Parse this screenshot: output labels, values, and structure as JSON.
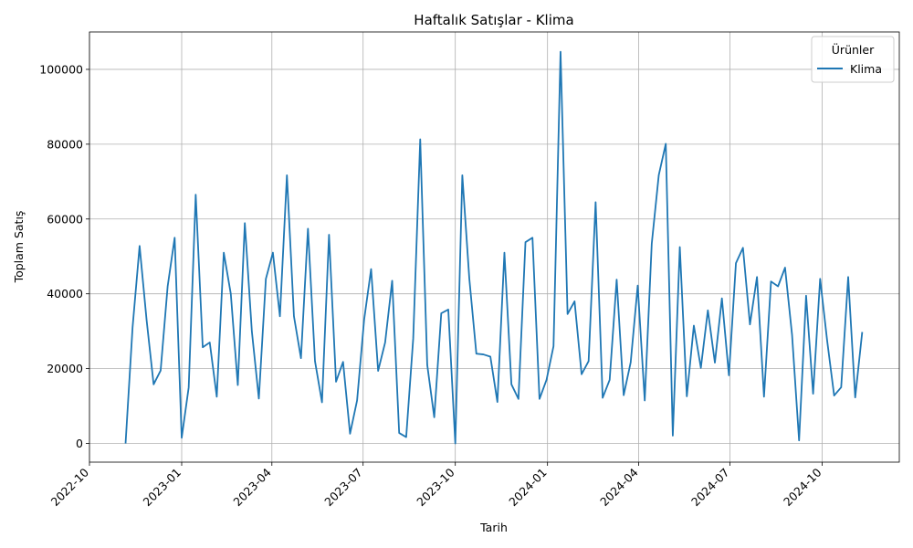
{
  "chart_data": {
    "type": "line",
    "title": "Haftalık Satışlar - Klima",
    "xlabel": "Tarih",
    "ylabel": "Toplam Satış",
    "legend": {
      "title": "Ürünler",
      "placement": "top-right"
    },
    "grid": true,
    "xlim": [
      "2022-10-01",
      "2024-12-17"
    ],
    "ylim": [
      -5000,
      110000
    ],
    "x_ticks": [
      "2022-10",
      "2023-01",
      "2023-04",
      "2023-07",
      "2023-10",
      "2024-01",
      "2024-04",
      "2024-07",
      "2024-10"
    ],
    "y_ticks": [
      0,
      20000,
      40000,
      60000,
      80000,
      100000
    ],
    "series": [
      {
        "name": "Klima",
        "color": "#1f77b4",
        "x": [
          "2022-11-06",
          "2022-11-13",
          "2022-11-20",
          "2022-11-27",
          "2022-12-04",
          "2022-12-11",
          "2022-12-18",
          "2022-12-25",
          "2023-01-01",
          "2023-01-08",
          "2023-01-15",
          "2023-01-22",
          "2023-01-29",
          "2023-02-05",
          "2023-02-12",
          "2023-02-19",
          "2023-02-26",
          "2023-03-05",
          "2023-03-12",
          "2023-03-19",
          "2023-03-26",
          "2023-04-02",
          "2023-04-09",
          "2023-04-16",
          "2023-04-23",
          "2023-04-30",
          "2023-05-07",
          "2023-05-14",
          "2023-05-21",
          "2023-05-28",
          "2023-06-04",
          "2023-06-11",
          "2023-06-18",
          "2023-06-25",
          "2023-07-02",
          "2023-07-09",
          "2023-07-16",
          "2023-07-23",
          "2023-07-30",
          "2023-08-06",
          "2023-08-13",
          "2023-08-20",
          "2023-08-27",
          "2023-09-03",
          "2023-09-10",
          "2023-09-17",
          "2023-09-24",
          "2023-10-01",
          "2023-10-08",
          "2023-10-15",
          "2023-10-22",
          "2023-10-29",
          "2023-11-05",
          "2023-11-12",
          "2023-11-19",
          "2023-11-26",
          "2023-12-03",
          "2023-12-10",
          "2023-12-17",
          "2023-12-24",
          "2023-12-31",
          "2024-01-07",
          "2024-01-14",
          "2024-01-21",
          "2024-01-28",
          "2024-02-04",
          "2024-02-11",
          "2024-02-18",
          "2024-02-25",
          "2024-03-03",
          "2024-03-10",
          "2024-03-17",
          "2024-03-24",
          "2024-03-31",
          "2024-04-07",
          "2024-04-14",
          "2024-04-21",
          "2024-04-28",
          "2024-05-05",
          "2024-05-12",
          "2024-05-19",
          "2024-05-26",
          "2024-06-02",
          "2024-06-09",
          "2024-06-16",
          "2024-06-23",
          "2024-06-30",
          "2024-07-07",
          "2024-07-14",
          "2024-07-21",
          "2024-07-28",
          "2024-08-04",
          "2024-08-11",
          "2024-08-18",
          "2024-08-25",
          "2024-09-01",
          "2024-09-08",
          "2024-09-15",
          "2024-09-22",
          "2024-09-29",
          "2024-10-06",
          "2024-10-13",
          "2024-10-20",
          "2024-10-27",
          "2024-11-03",
          "2024-11-10"
        ],
        "values": [
          0,
          31000,
          52800,
          33000,
          15800,
          19500,
          42000,
          55000,
          1500,
          15000,
          66500,
          25700,
          27000,
          12500,
          51000,
          40000,
          15600,
          58900,
          30000,
          12000,
          44000,
          51000,
          34000,
          71700,
          34000,
          22800,
          57400,
          22000,
          11000,
          55800,
          16500,
          21800,
          2600,
          11500,
          33000,
          46600,
          19400,
          27000,
          43500,
          2800,
          1700,
          28000,
          81300,
          21000,
          7000,
          34800,
          35800,
          0,
          71700,
          44000,
          24000,
          23800,
          23200,
          11100,
          51000,
          15800,
          11900,
          53800,
          55000,
          11900,
          17000,
          26000,
          104700,
          34600,
          38000,
          18500,
          22000,
          64500,
          12200,
          17000,
          43800,
          12900,
          21700,
          42200,
          11500,
          53400,
          71700,
          80100,
          2100,
          52500,
          12600,
          31500,
          20200,
          35600,
          21600,
          38800,
          18200,
          48200,
          52300,
          31800,
          44500,
          12500,
          43300,
          42000,
          47000,
          29000,
          800,
          39500,
          13300,
          44000,
          27500,
          12800,
          15000,
          44500,
          12300,
          29800
        ]
      }
    ]
  }
}
